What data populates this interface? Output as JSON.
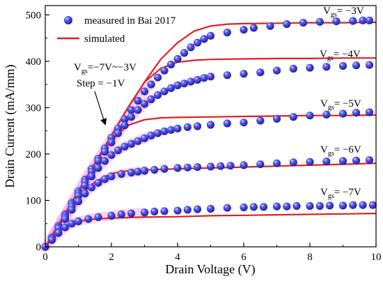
{
  "chart_data": {
    "type": "scatter",
    "xlabel": "Drain Voltage (V)",
    "ylabel": "Drain Current (mA/mm)",
    "xlim": [
      0,
      10
    ],
    "ylim": [
      0,
      520
    ],
    "xticks": [
      0,
      2,
      4,
      6,
      8,
      10
    ],
    "yticks": [
      0,
      100,
      200,
      300,
      400,
      500
    ],
    "grid": false,
    "legend_position": "top-left",
    "legend": {
      "measured": "measured in Bai 2017",
      "simulated": "simulated"
    },
    "annotation": {
      "range_sub": "gs",
      "range_main": "=−7V~−3V",
      "step": "Step = −1V"
    },
    "series_labels": [
      {
        "sub": "gs",
        "rest": "= −3V"
      },
      {
        "sub": "gs",
        "rest": "= −4V"
      },
      {
        "sub": "gs",
        "rest": "= −5V"
      },
      {
        "sub": "gs",
        "rest": "= −6V"
      },
      {
        "sub": "gs",
        "rest": "= −7V"
      }
    ],
    "series": [
      {
        "vgs": -3,
        "measured": {
          "x": [
            0,
            0.2,
            0.4,
            0.6,
            0.8,
            1.0,
            1.2,
            1.4,
            1.6,
            1.8,
            2.0,
            2.2,
            2.4,
            2.6,
            2.8,
            3.0,
            3.2,
            3.4,
            3.6,
            3.8,
            4.0,
            4.2,
            4.4,
            4.6,
            4.8,
            5.0,
            5.5,
            6.0,
            6.3,
            6.8,
            7.3,
            7.8,
            8.3,
            8.8,
            9.3,
            9.6,
            9.8
          ],
          "y": [
            0,
            20,
            45,
            70,
            95,
            120,
            145,
            168,
            190,
            212,
            235,
            255,
            275,
            295,
            315,
            335,
            350,
            365,
            380,
            393,
            405,
            418,
            430,
            440,
            448,
            455,
            462,
            468,
            472,
            476,
            480,
            483,
            485,
            486,
            487,
            488,
            488
          ]
        },
        "simulated": {
          "x": [
            0,
            0.5,
            1,
            1.5,
            2,
            2.5,
            3,
            3.5,
            4,
            4.5,
            5,
            5.5,
            6,
            7,
            8,
            9,
            10
          ],
          "y": [
            0,
            60,
            120,
            180,
            240,
            300,
            355,
            405,
            440,
            465,
            476,
            480,
            481,
            482,
            483,
            483,
            484
          ]
        }
      },
      {
        "vgs": -4,
        "measured": {
          "x": [
            0.2,
            0.4,
            0.6,
            0.8,
            1.0,
            1.2,
            1.4,
            1.6,
            1.8,
            2.0,
            2.2,
            2.4,
            2.6,
            2.8,
            3.0,
            3.2,
            3.4,
            3.6,
            3.8,
            4.0,
            4.2,
            4.4,
            4.6,
            4.8,
            5.0,
            5.5,
            6.0,
            6.5,
            7.0,
            7.5,
            8.0,
            8.5,
            9.0,
            9.4,
            9.8
          ],
          "y": [
            20,
            45,
            68,
            92,
            115,
            140,
            162,
            185,
            205,
            225,
            245,
            262,
            280,
            295,
            308,
            318,
            327,
            335,
            342,
            348,
            352,
            356,
            360,
            364,
            367,
            370,
            373,
            376,
            380,
            384,
            386,
            388,
            390,
            391,
            392
          ]
        },
        "simulated": {
          "x": [
            0,
            0.5,
            1,
            1.5,
            2,
            2.5,
            3,
            3.5,
            4,
            4.5,
            5,
            6,
            7,
            8,
            9,
            10
          ],
          "y": [
            0,
            60,
            120,
            180,
            240,
            300,
            355,
            385,
            398,
            402,
            404,
            405,
            406,
            406,
            407,
            407
          ]
        }
      },
      {
        "vgs": -5,
        "measured": {
          "x": [
            0.2,
            0.4,
            0.6,
            0.8,
            1.0,
            1.2,
            1.4,
            1.6,
            1.8,
            2.0,
            2.2,
            2.4,
            2.6,
            2.8,
            3.0,
            3.2,
            3.4,
            3.6,
            3.8,
            4.0,
            4.3,
            4.6,
            5.0,
            5.5,
            6.0,
            6.5,
            7.0,
            7.5,
            8.0,
            8.5,
            9.0,
            9.4,
            9.8
          ],
          "y": [
            20,
            42,
            64,
            87,
            110,
            132,
            152,
            170,
            185,
            198,
            208,
            216,
            222,
            228,
            234,
            240,
            245,
            249,
            252,
            255,
            258,
            260,
            263,
            266,
            268,
            272,
            276,
            280,
            283,
            285,
            287,
            289,
            290
          ]
        },
        "simulated": {
          "x": [
            0,
            0.5,
            1,
            1.5,
            2,
            2.5,
            3,
            3.5,
            4,
            5,
            6,
            7,
            8,
            9,
            10
          ],
          "y": [
            0,
            60,
            120,
            180,
            230,
            262,
            274,
            278,
            279,
            280,
            281,
            282,
            283,
            283,
            284
          ]
        }
      },
      {
        "vgs": -6,
        "measured": {
          "x": [
            0.2,
            0.4,
            0.6,
            0.8,
            1.0,
            1.2,
            1.4,
            1.6,
            1.8,
            2.0,
            2.3,
            2.6,
            2.8,
            3.0,
            3.3,
            3.6,
            4.0,
            4.3,
            4.6,
            5.0,
            5.3,
            5.6,
            6.0,
            6.5,
            7.0,
            7.5,
            8.0,
            8.5,
            9.0,
            9.4,
            9.8
          ],
          "y": [
            18,
            40,
            60,
            80,
            98,
            115,
            128,
            138,
            146,
            152,
            157,
            160,
            162,
            164,
            166,
            168,
            170,
            171,
            172,
            173,
            174,
            175,
            176,
            178,
            180,
            182,
            183,
            184,
            185,
            186,
            187
          ]
        },
        "simulated": {
          "x": [
            0,
            0.5,
            1,
            1.5,
            2,
            2.5,
            3,
            4,
            5,
            6,
            7,
            8,
            9,
            10
          ],
          "y": [
            0,
            55,
            105,
            140,
            158,
            164,
            166,
            168,
            170,
            172,
            174,
            176,
            178,
            180
          ]
        }
      },
      {
        "vgs": -7,
        "measured": {
          "x": [
            0.2,
            0.4,
            0.6,
            0.8,
            1.0,
            1.3,
            1.6,
            2.0,
            2.3,
            2.6,
            3.0,
            3.3,
            3.6,
            4.0,
            4.3,
            4.6,
            5.0,
            5.5,
            6.0,
            6.3,
            6.6,
            7.0,
            7.3,
            7.6,
            8.0,
            8.3,
            8.6,
            9.0,
            9.3,
            9.6,
            9.9
          ],
          "y": [
            15,
            30,
            42,
            50,
            55,
            60,
            64,
            67,
            70,
            72,
            74,
            76,
            77,
            78,
            80,
            81,
            82,
            84,
            85,
            86,
            86,
            87,
            87,
            88,
            88,
            88,
            89,
            89,
            90,
            90,
            90
          ]
        },
        "simulated": {
          "x": [
            0,
            0.5,
            1,
            1.5,
            2,
            3,
            4,
            5,
            6,
            7,
            8,
            9,
            10
          ],
          "y": [
            0,
            40,
            55,
            60,
            62,
            64,
            65,
            67,
            68,
            69,
            70,
            71,
            72
          ]
        }
      }
    ],
    "colors": {
      "marker": "#3a3ad0",
      "marker_highlight": "#c8c8ff",
      "line": "#e02020",
      "glow": "#f0a0f0"
    }
  }
}
